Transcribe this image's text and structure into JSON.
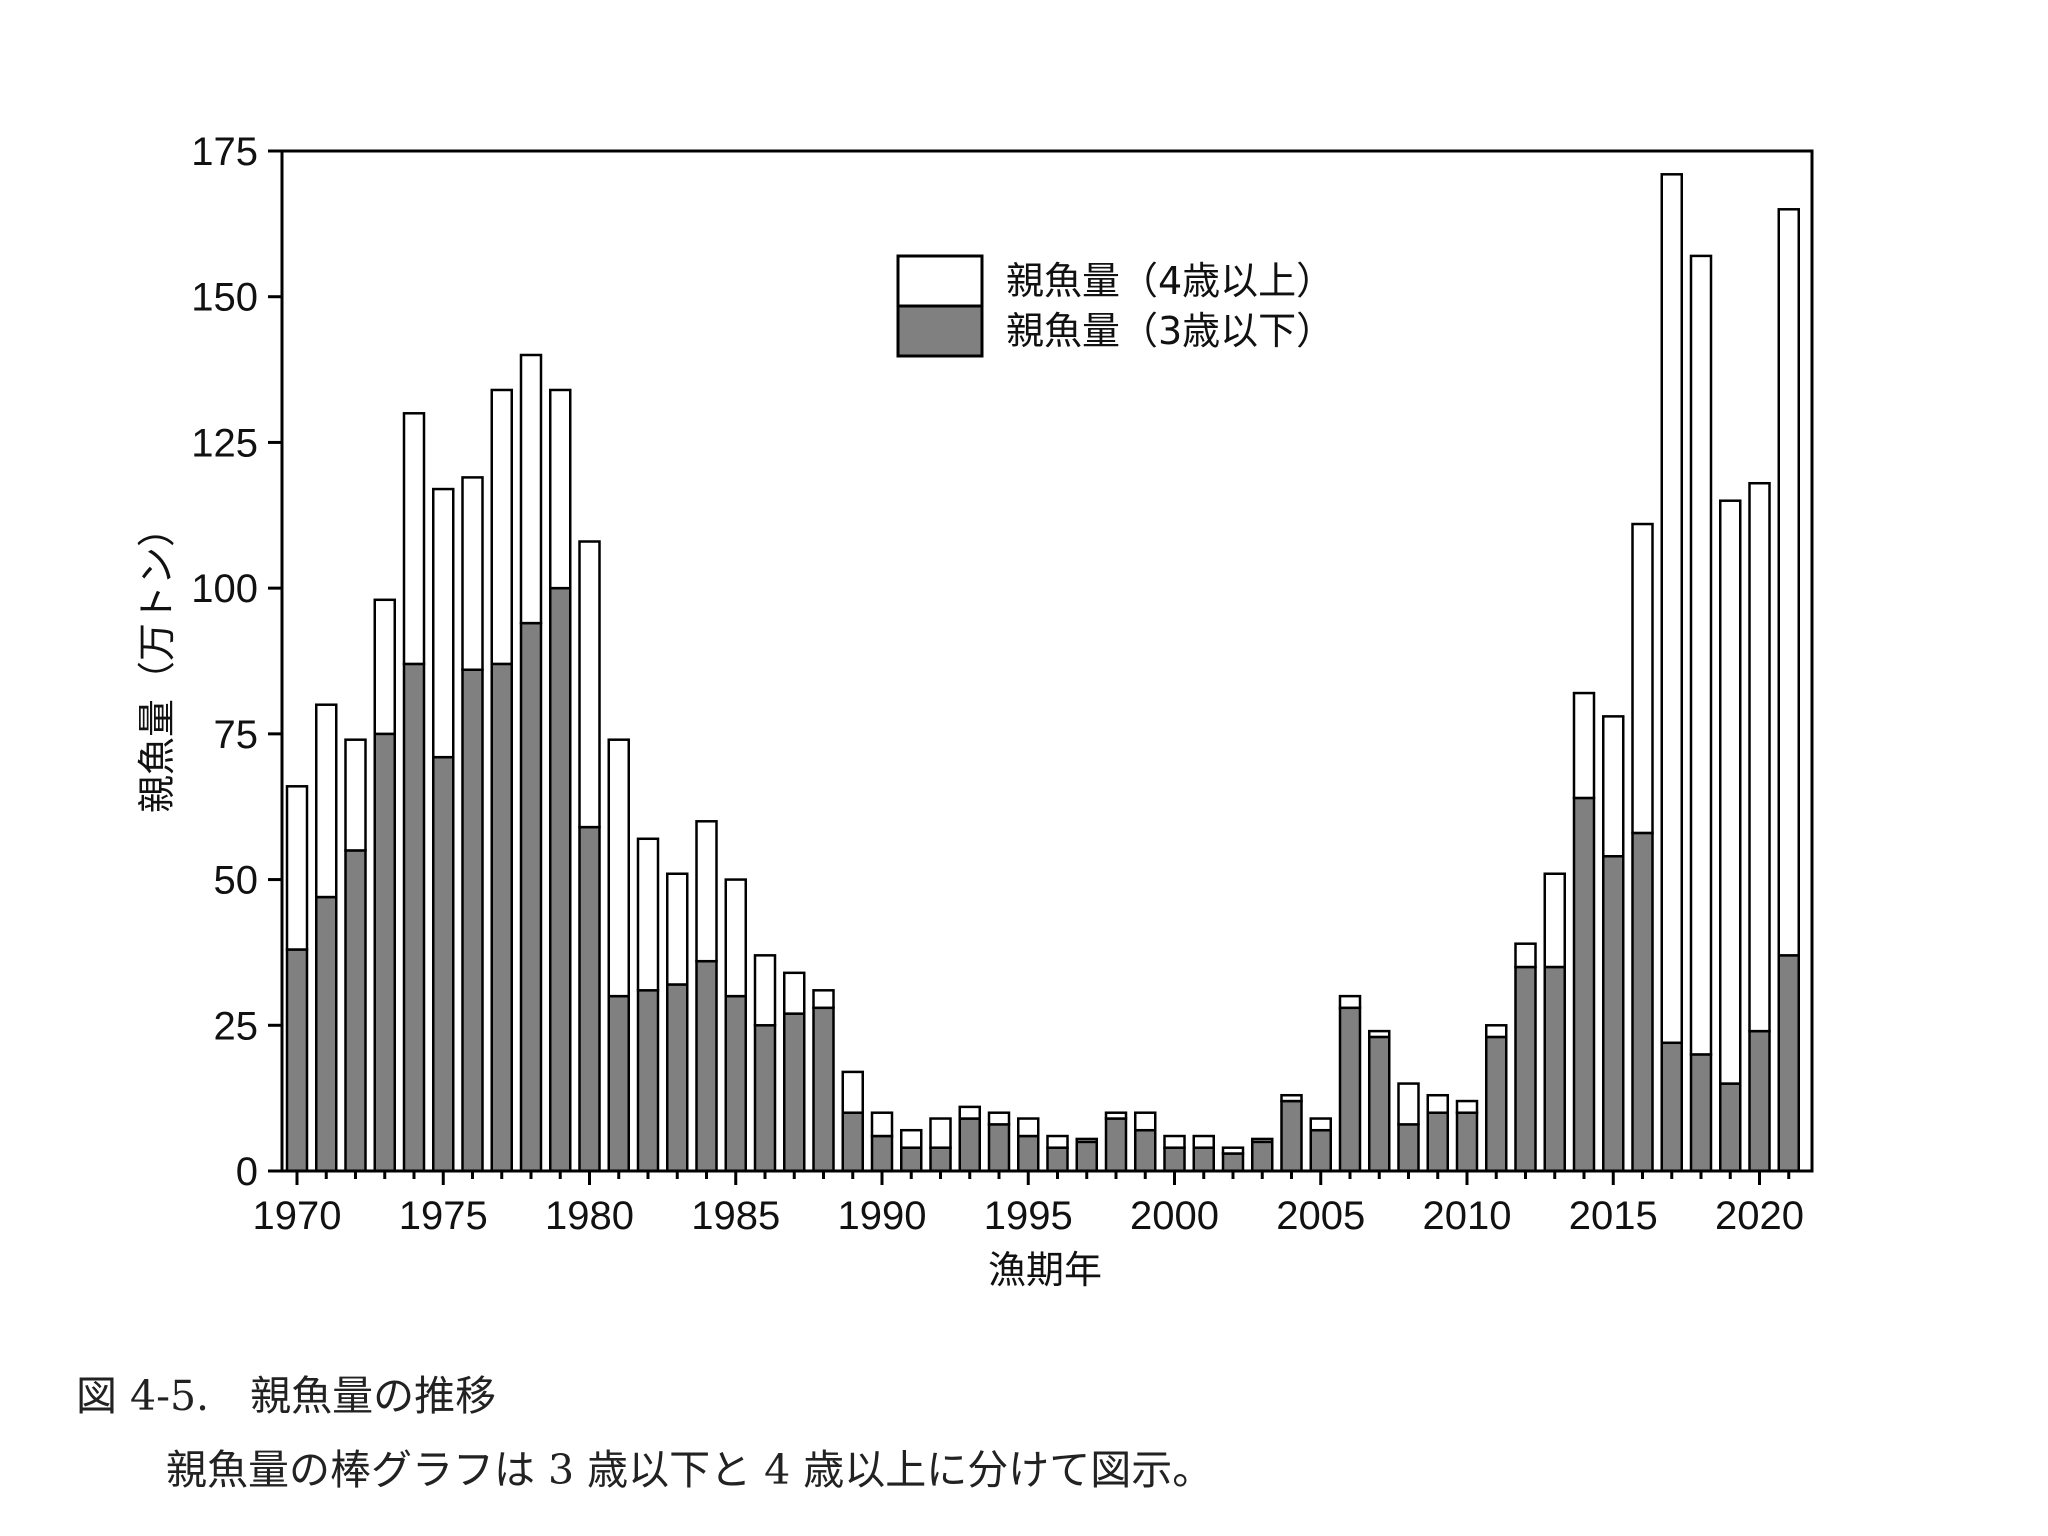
{
  "chart_data": {
    "type": "bar",
    "stacked": true,
    "xlabel": "漁期年",
    "ylabel": "親魚量（万トン）",
    "ylim": [
      0,
      175
    ],
    "yticks": [
      0,
      25,
      50,
      75,
      100,
      125,
      150,
      175
    ],
    "xticks": [
      1970,
      1975,
      1980,
      1985,
      1990,
      1995,
      2000,
      2005,
      2010,
      2015,
      2020
    ],
    "legend_position": "top-center",
    "grid": false,
    "categories": [
      1970,
      1971,
      1972,
      1973,
      1974,
      1975,
      1976,
      1977,
      1978,
      1979,
      1980,
      1981,
      1982,
      1983,
      1984,
      1985,
      1986,
      1987,
      1988,
      1989,
      1990,
      1991,
      1992,
      1993,
      1994,
      1995,
      1996,
      1997,
      1998,
      1999,
      2000,
      2001,
      2002,
      2003,
      2004,
      2005,
      2006,
      2007,
      2008,
      2009,
      2010,
      2011,
      2012,
      2013,
      2014,
      2015,
      2016,
      2017,
      2018,
      2019,
      2020,
      2021
    ],
    "series": [
      {
        "name": "親魚量（3歳以下）",
        "color": "#808080",
        "values": [
          38,
          47,
          55,
          75,
          87,
          71,
          86,
          87,
          94,
          100,
          59,
          30,
          31,
          32,
          36,
          30,
          25,
          27,
          28,
          10,
          6,
          4,
          4,
          9,
          8,
          6,
          4,
          5,
          9,
          7,
          4,
          4,
          3,
          5,
          12,
          7,
          28,
          23,
          8,
          10,
          10,
          23,
          35,
          35,
          64,
          54,
          58,
          22,
          20,
          15,
          24,
          37
        ]
      },
      {
        "name": "親魚量（4歳以上）",
        "color": "#ffffff",
        "values": [
          28,
          33,
          19,
          23,
          43,
          46,
          33,
          47,
          46,
          34,
          49,
          44,
          26,
          19,
          24,
          20,
          12,
          7,
          3,
          7,
          4,
          3,
          5,
          2,
          2,
          3,
          2,
          0.5,
          1,
          3,
          2,
          2,
          1,
          0.5,
          1,
          2,
          2,
          1,
          7,
          3,
          2,
          2,
          4,
          16,
          18,
          24,
          53,
          149,
          137,
          100,
          94,
          128
        ]
      }
    ]
  },
  "caption": {
    "title": "図 4-5.　親魚量の推移",
    "body": "親魚量の棒グラフは 3 歳以下と 4 歳以上に分けて図示。"
  }
}
